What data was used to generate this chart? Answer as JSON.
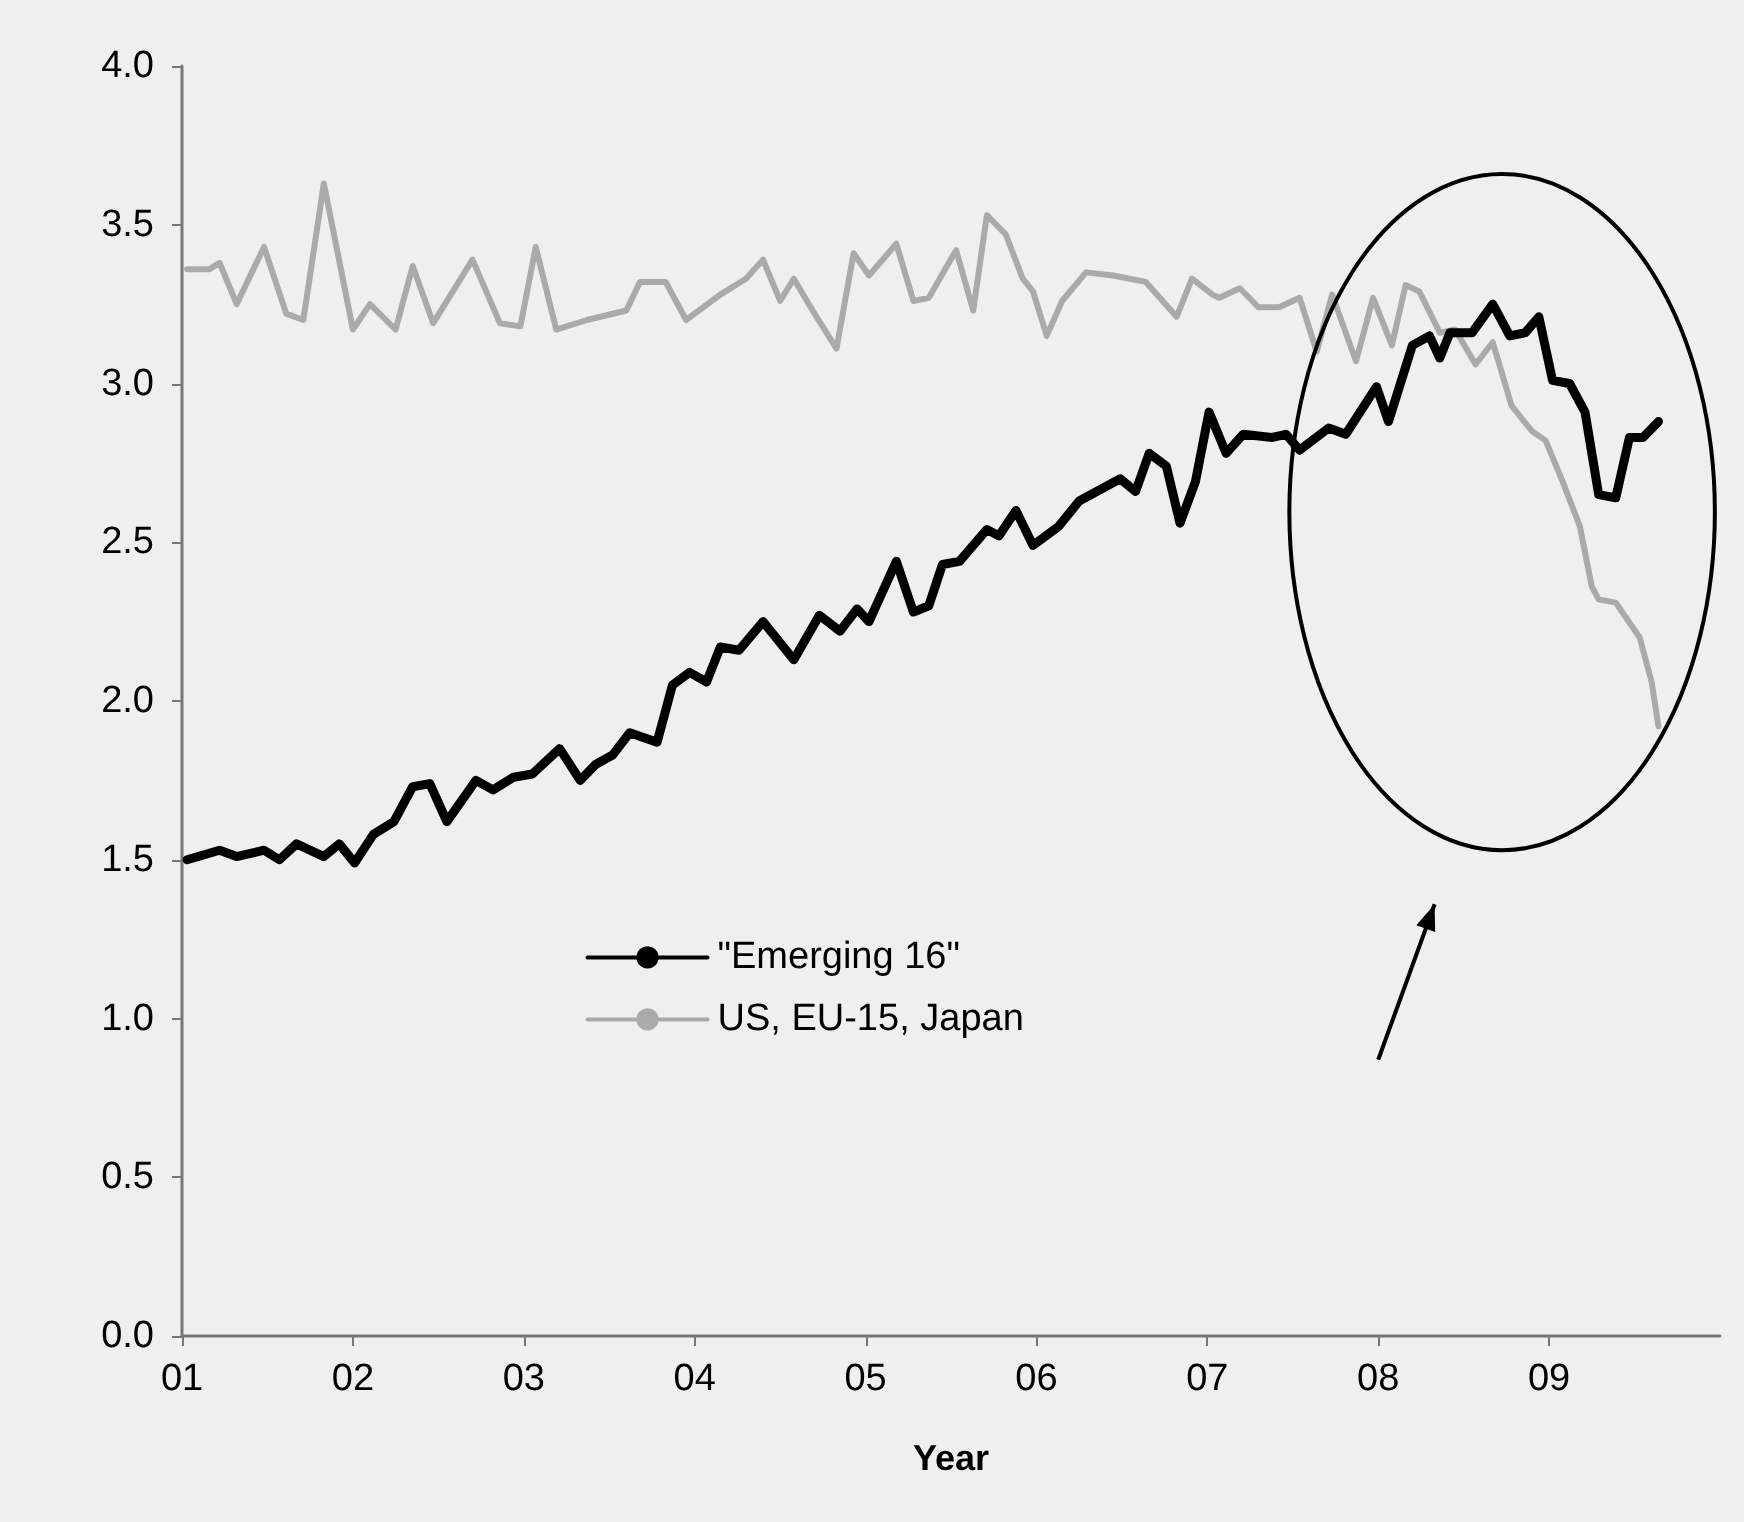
{
  "chart_data": {
    "type": "line",
    "xlabel": "Year",
    "xlim": [
      1,
      10
    ],
    "xticks": [
      {
        "value": 1,
        "label": "01"
      },
      {
        "value": 2,
        "label": "02"
      },
      {
        "value": 3,
        "label": "03"
      },
      {
        "value": 4,
        "label": "04"
      },
      {
        "value": 5,
        "label": "05"
      },
      {
        "value": 6,
        "label": "06"
      },
      {
        "value": 7,
        "label": "07"
      },
      {
        "value": 8,
        "label": "08"
      },
      {
        "value": 9,
        "label": "09"
      }
    ],
    "ylim": [
      0,
      4
    ],
    "yticks": [
      {
        "value": 0,
        "label": "0.0"
      },
      {
        "value": 0.5,
        "label": "0.5"
      },
      {
        "value": 1,
        "label": "1.0"
      },
      {
        "value": 1.5,
        "label": "1.5"
      },
      {
        "value": 2,
        "label": "2.0"
      },
      {
        "value": 2.5,
        "label": "2.5"
      },
      {
        "value": 3,
        "label": "3.0"
      },
      {
        "value": 3.5,
        "label": "3.5"
      },
      {
        "value": 4,
        "label": "4.0"
      }
    ],
    "grid": false,
    "legend": "center",
    "marker": "none",
    "line_style": "solid",
    "series": [
      {
        "name": "\"Emerging 16\"",
        "color": "#000000",
        "x": [
          1.03,
          1.22,
          1.32,
          1.48,
          1.57,
          1.67,
          1.83,
          1.92,
          2.01,
          2.12,
          2.24,
          2.35,
          2.45,
          2.55,
          2.72,
          2.82,
          2.94,
          3.05,
          3.21,
          3.33,
          3.42,
          3.52,
          3.62,
          3.78,
          3.87,
          3.97,
          4.07,
          4.15,
          4.26,
          4.4,
          4.58,
          4.73,
          4.85,
          4.95,
          5.02,
          5.18,
          5.28,
          5.37,
          5.45,
          5.55,
          5.71,
          5.78,
          5.88,
          5.98,
          6.13,
          6.25,
          6.49,
          6.58,
          6.66,
          6.76,
          6.84,
          6.93,
          7.01,
          7.11,
          7.21,
          7.38,
          7.46,
          7.54,
          7.71,
          7.81,
          7.99,
          8.06,
          8.2,
          8.3,
          8.36,
          8.42,
          8.55,
          8.67,
          8.77,
          8.86,
          8.94,
          9.02,
          9.12,
          9.21,
          9.29,
          9.39,
          9.47,
          9.55,
          9.64
        ],
        "values": [
          1.5,
          1.53,
          1.51,
          1.53,
          1.5,
          1.55,
          1.51,
          1.55,
          1.49,
          1.58,
          1.62,
          1.73,
          1.74,
          1.62,
          1.75,
          1.72,
          1.76,
          1.77,
          1.85,
          1.75,
          1.8,
          1.83,
          1.9,
          1.87,
          2.05,
          2.09,
          2.06,
          2.17,
          2.16,
          2.25,
          2.13,
          2.27,
          2.22,
          2.29,
          2.25,
          2.44,
          2.28,
          2.3,
          2.43,
          2.44,
          2.54,
          2.52,
          2.6,
          2.49,
          2.55,
          2.63,
          2.7,
          2.66,
          2.78,
          2.74,
          2.56,
          2.69,
          2.91,
          2.78,
          2.84,
          2.83,
          2.84,
          2.79,
          2.86,
          2.84,
          2.99,
          2.88,
          3.12,
          3.15,
          3.08,
          3.16,
          3.16,
          3.25,
          3.15,
          3.16,
          3.21,
          3.01,
          3,
          2.91,
          2.65,
          2.64,
          2.83,
          2.83,
          2.88
        ]
      },
      {
        "name": "US, EU-15, Japan",
        "color": "#aaaaaa",
        "x": [
          1.03,
          1.16,
          1.22,
          1.32,
          1.48,
          1.61,
          1.71,
          1.83,
          2.0,
          2.1,
          2.25,
          2.35,
          2.47,
          2.7,
          2.86,
          2.98,
          3.07,
          3.19,
          3.37,
          3.6,
          3.68,
          3.83,
          3.95,
          4.15,
          4.3,
          4.4,
          4.5,
          4.58,
          4.69,
          4.83,
          4.93,
          5.02,
          5.18,
          5.28,
          5.37,
          5.53,
          5.63,
          5.71,
          5.82,
          5.92,
          5.98,
          6.06,
          6.15,
          6.29,
          6.45,
          6.64,
          6.82,
          6.91,
          7.03,
          7.07,
          7.19,
          7.3,
          7.42,
          7.54,
          7.64,
          7.73,
          7.87,
          7.97,
          8.08,
          8.16,
          8.24,
          8.36,
          8.45,
          8.57,
          8.67,
          8.78,
          8.9,
          8.98,
          9.08,
          9.18,
          9.25,
          9.29,
          9.39,
          9.53,
          9.6,
          9.64
        ],
        "values": [
          3.36,
          3.36,
          3.38,
          3.25,
          3.43,
          3.22,
          3.2,
          3.63,
          3.17,
          3.25,
          3.17,
          3.37,
          3.19,
          3.39,
          3.19,
          3.18,
          3.43,
          3.17,
          3.2,
          3.23,
          3.32,
          3.32,
          3.2,
          3.28,
          3.33,
          3.39,
          3.26,
          3.33,
          3.23,
          3.11,
          3.41,
          3.34,
          3.44,
          3.26,
          3.27,
          3.42,
          3.23,
          3.53,
          3.47,
          3.33,
          3.29,
          3.15,
          3.26,
          3.35,
          3.34,
          3.32,
          3.21,
          3.33,
          3.28,
          3.27,
          3.3,
          3.24,
          3.24,
          3.27,
          3.1,
          3.28,
          3.07,
          3.27,
          3.12,
          3.31,
          3.29,
          3.16,
          3.17,
          3.06,
          3.13,
          2.93,
          2.85,
          2.82,
          2.69,
          2.55,
          2.36,
          2.32,
          2.31,
          2.2,
          2.06,
          1.92
        ]
      }
    ]
  }
}
